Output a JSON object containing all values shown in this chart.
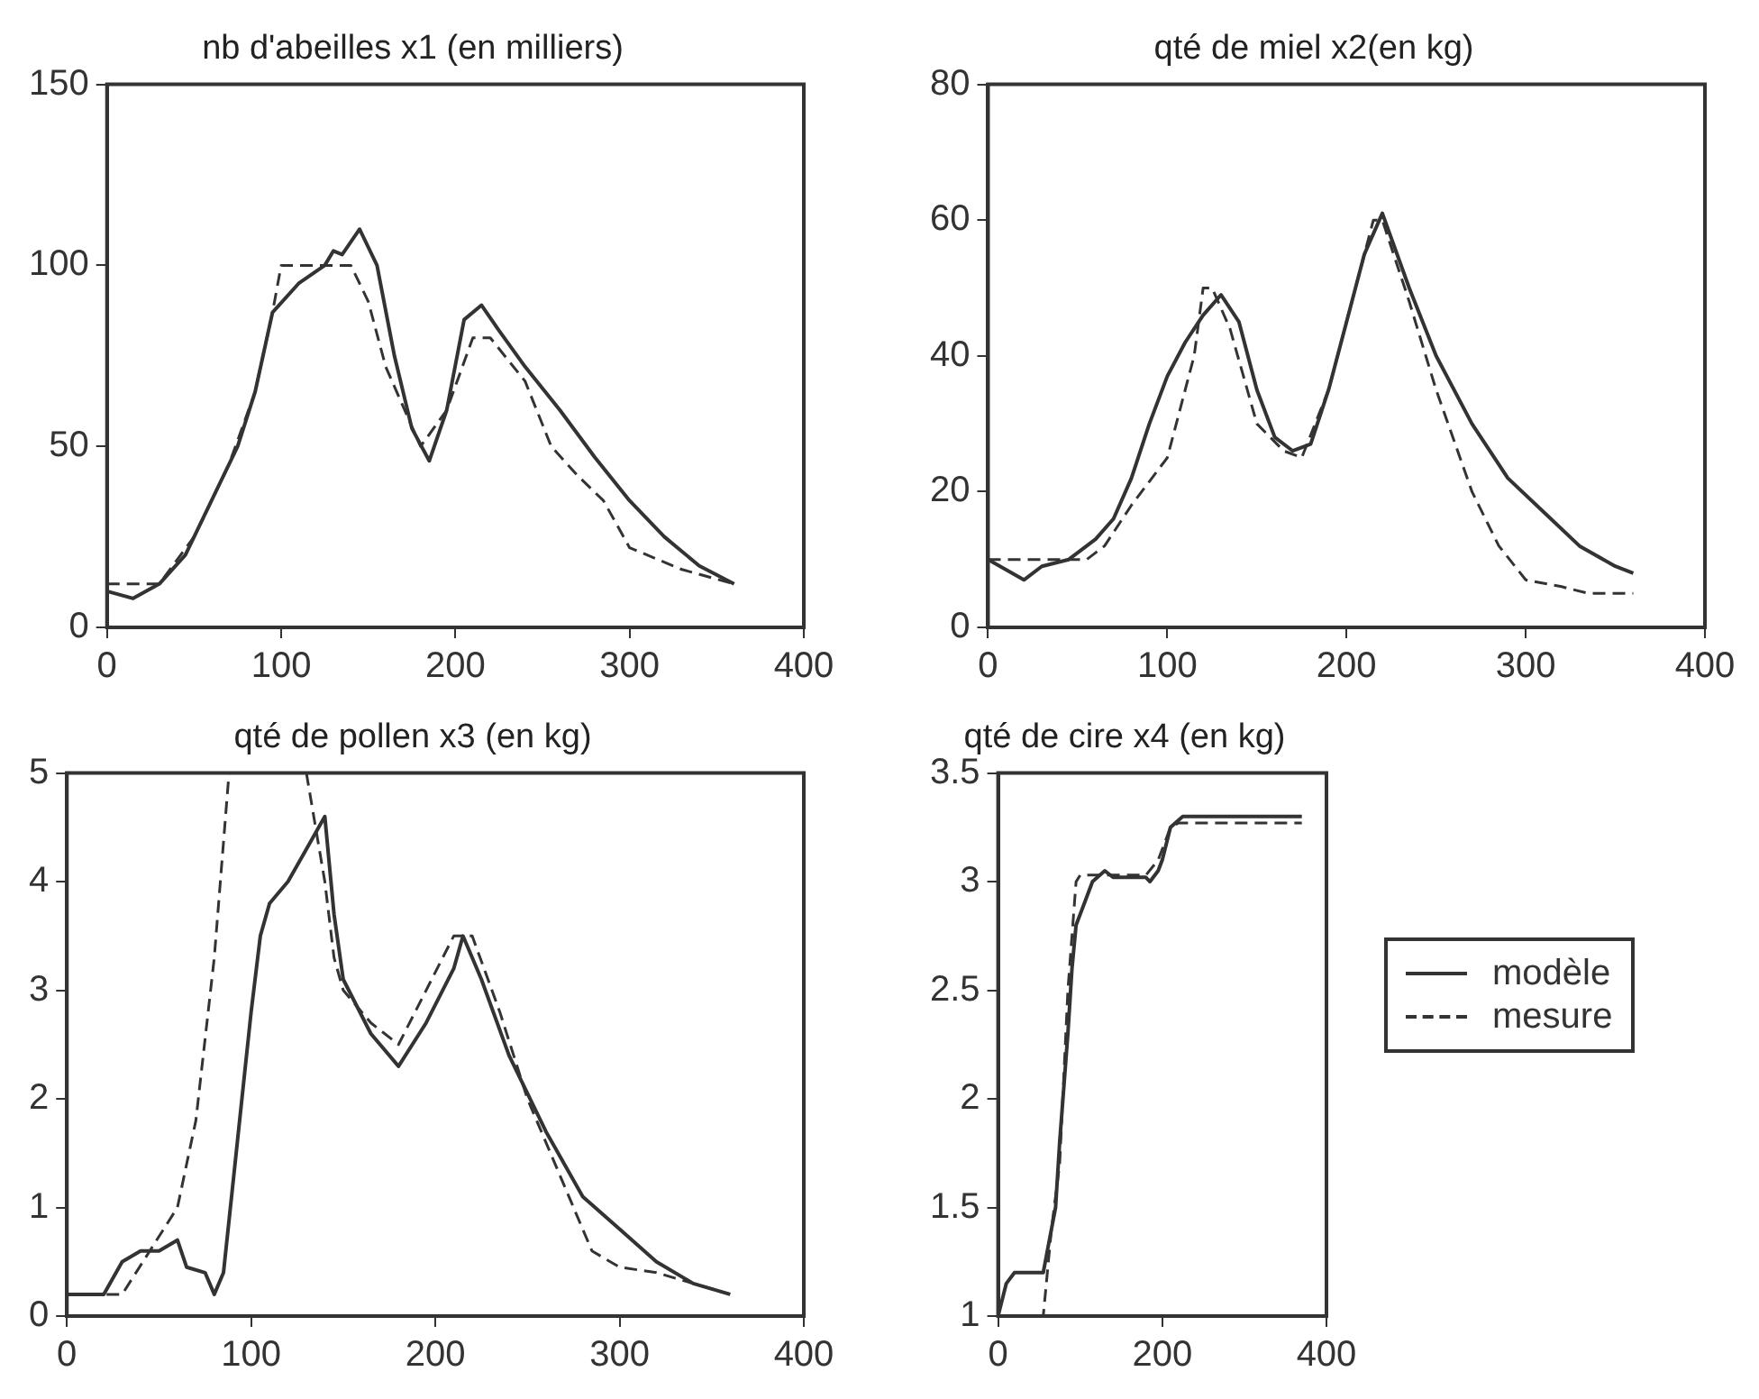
{
  "chart_data": [
    {
      "type": "line",
      "title": "nb d'abeilles x1 (en milliers)",
      "xlim": [
        0,
        400
      ],
      "xticks": [
        0,
        100,
        200,
        300,
        400
      ],
      "ylim": [
        0,
        150
      ],
      "yticks": [
        0,
        50,
        100,
        150
      ],
      "grid": false,
      "series": [
        {
          "color": "#333333",
          "line_style": "solid",
          "x": [
            0,
            15,
            30,
            45,
            60,
            75,
            85,
            95,
            110,
            125,
            130,
            135,
            145,
            155,
            165,
            175,
            185,
            195,
            205,
            215,
            225,
            240,
            260,
            280,
            300,
            320,
            340,
            360
          ],
          "values": [
            10,
            8,
            12,
            20,
            35,
            50,
            65,
            87,
            95,
            100,
            104,
            103,
            110,
            100,
            75,
            55,
            46,
            60,
            85,
            89,
            82,
            72,
            60,
            47,
            35,
            25,
            17,
            12
          ]
        },
        {
          "color": "#333333",
          "line_style": "dashed",
          "x": [
            0,
            30,
            50,
            70,
            85,
            95,
            100,
            140,
            150,
            160,
            180,
            195,
            210,
            220,
            240,
            255,
            270,
            285,
            300,
            330,
            360
          ],
          "values": [
            12,
            12,
            25,
            45,
            65,
            87,
            100,
            100,
            90,
            72,
            50,
            60,
            80,
            80,
            68,
            50,
            42,
            35,
            22,
            16,
            12
          ]
        }
      ]
    },
    {
      "type": "line",
      "title": "qté de miel x2(en kg)",
      "xlim": [
        0,
        400
      ],
      "xticks": [
        0,
        100,
        200,
        300,
        400
      ],
      "ylim": [
        0,
        80
      ],
      "yticks": [
        0,
        20,
        40,
        60,
        80
      ],
      "grid": false,
      "series": [
        {
          "color": "#333333",
          "line_style": "solid",
          "x": [
            0,
            20,
            30,
            45,
            60,
            70,
            80,
            90,
            100,
            110,
            120,
            130,
            140,
            150,
            160,
            170,
            180,
            190,
            200,
            210,
            220,
            235,
            250,
            270,
            290,
            310,
            330,
            350,
            360
          ],
          "values": [
            10,
            7,
            9,
            10,
            13,
            16,
            22,
            30,
            37,
            42,
            46,
            49,
            45,
            35,
            28,
            26,
            27,
            35,
            45,
            55,
            61,
            50,
            40,
            30,
            22,
            17,
            12,
            9,
            8
          ]
        },
        {
          "color": "#333333",
          "line_style": "dashed",
          "x": [
            0,
            55,
            65,
            80,
            100,
            115,
            120,
            125,
            135,
            150,
            165,
            175,
            190,
            205,
            215,
            220,
            235,
            250,
            270,
            285,
            300,
            320,
            335,
            360
          ],
          "values": [
            10,
            10,
            12,
            18,
            25,
            40,
            50,
            50,
            44,
            30,
            26,
            25,
            35,
            50,
            60,
            60,
            48,
            35,
            20,
            12,
            7,
            6,
            5,
            5
          ]
        }
      ]
    },
    {
      "type": "line",
      "title": "qté de pollen x3 (en kg)",
      "xlim": [
        0,
        400
      ],
      "xticks": [
        0,
        100,
        200,
        300,
        400
      ],
      "ylim": [
        0,
        5
      ],
      "yticks": [
        0,
        1,
        2,
        3,
        4,
        5
      ],
      "grid": false,
      "series": [
        {
          "color": "#333333",
          "line_style": "solid",
          "x": [
            0,
            20,
            30,
            40,
            50,
            60,
            65,
            75,
            80,
            85,
            90,
            95,
            100,
            105,
            110,
            120,
            130,
            140,
            145,
            150,
            165,
            180,
            195,
            210,
            215,
            225,
            240,
            260,
            280,
            300,
            320,
            340,
            360
          ],
          "values": [
            0.2,
            0.2,
            0.5,
            0.6,
            0.6,
            0.7,
            0.45,
            0.4,
            0.2,
            0.4,
            1.2,
            2,
            2.8,
            3.5,
            3.8,
            4.0,
            4.3,
            4.6,
            3.7,
            3.1,
            2.6,
            2.3,
            2.7,
            3.2,
            3.5,
            3.1,
            2.4,
            1.7,
            1.1,
            0.8,
            0.5,
            0.3,
            0.2
          ]
        },
        {
          "color": "#333333",
          "line_style": "dashed",
          "x": [
            0,
            30,
            45,
            60,
            70,
            80,
            88,
            110,
            130,
            135,
            140,
            145,
            150,
            165,
            180,
            195,
            210,
            220,
            235,
            250,
            270,
            285,
            300,
            320,
            340,
            360
          ],
          "values": [
            0.2,
            0.2,
            0.6,
            1.0,
            1.8,
            3.3,
            5,
            null,
            5,
            4.5,
            4,
            3.3,
            3.0,
            2.7,
            2.5,
            3.0,
            3.5,
            3.5,
            2.8,
            2.0,
            1.2,
            0.6,
            0.45,
            0.4,
            0.3,
            0.2
          ]
        }
      ]
    },
    {
      "type": "line",
      "title": "qté de cire x4 (en kg)",
      "xlim": [
        0,
        400
      ],
      "xticks": [
        0,
        200,
        400
      ],
      "ylim": [
        1,
        3.5
      ],
      "yticks": [
        1,
        1.5,
        2,
        2.5,
        3,
        3.5
      ],
      "grid": false,
      "legend": "right",
      "series": [
        {
          "name": "modèle",
          "color": "#333333",
          "line_style": "solid",
          "x": [
            0,
            10,
            20,
            55,
            60,
            70,
            75,
            85,
            90,
            95,
            105,
            115,
            130,
            140,
            180,
            185,
            195,
            200,
            210,
            225,
            370
          ],
          "values": [
            1.0,
            1.15,
            1.2,
            1.2,
            1.3,
            1.5,
            1.8,
            2.3,
            2.6,
            2.8,
            2.9,
            3.0,
            3.05,
            3.02,
            3.02,
            3.0,
            3.05,
            3.1,
            3.25,
            3.3,
            3.3
          ]
        },
        {
          "name": "mesure",
          "color": "#333333",
          "line_style": "dashed",
          "x": [
            0,
            55,
            65,
            75,
            85,
            95,
            100,
            180,
            195,
            210,
            220,
            370
          ],
          "values": [
            1,
            1,
            1.4,
            1.7,
            2.5,
            3.0,
            3.03,
            3.03,
            3.1,
            3.25,
            3.27,
            3.27
          ]
        }
      ]
    }
  ]
}
